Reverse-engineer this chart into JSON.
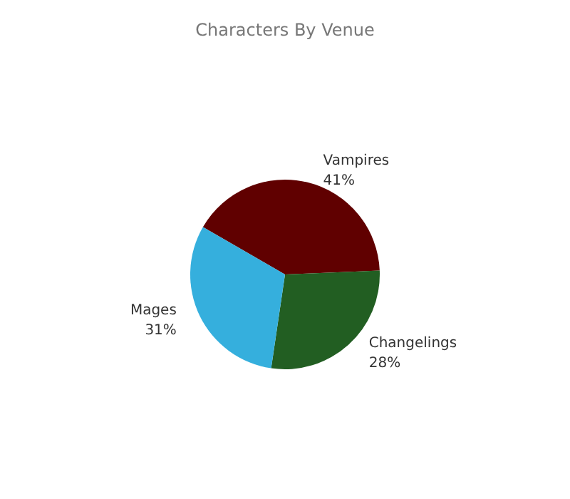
{
  "chart_data": {
    "type": "pie",
    "title": "Characters By Venue",
    "categories": [
      "Vampires",
      "Changelings",
      "Mages"
    ],
    "values": [
      41,
      28,
      31
    ],
    "value_labels": [
      "41%",
      "28%",
      "31%"
    ],
    "colors": [
      "#600000",
      "#225e22",
      "#35afdd"
    ],
    "legend": false
  }
}
